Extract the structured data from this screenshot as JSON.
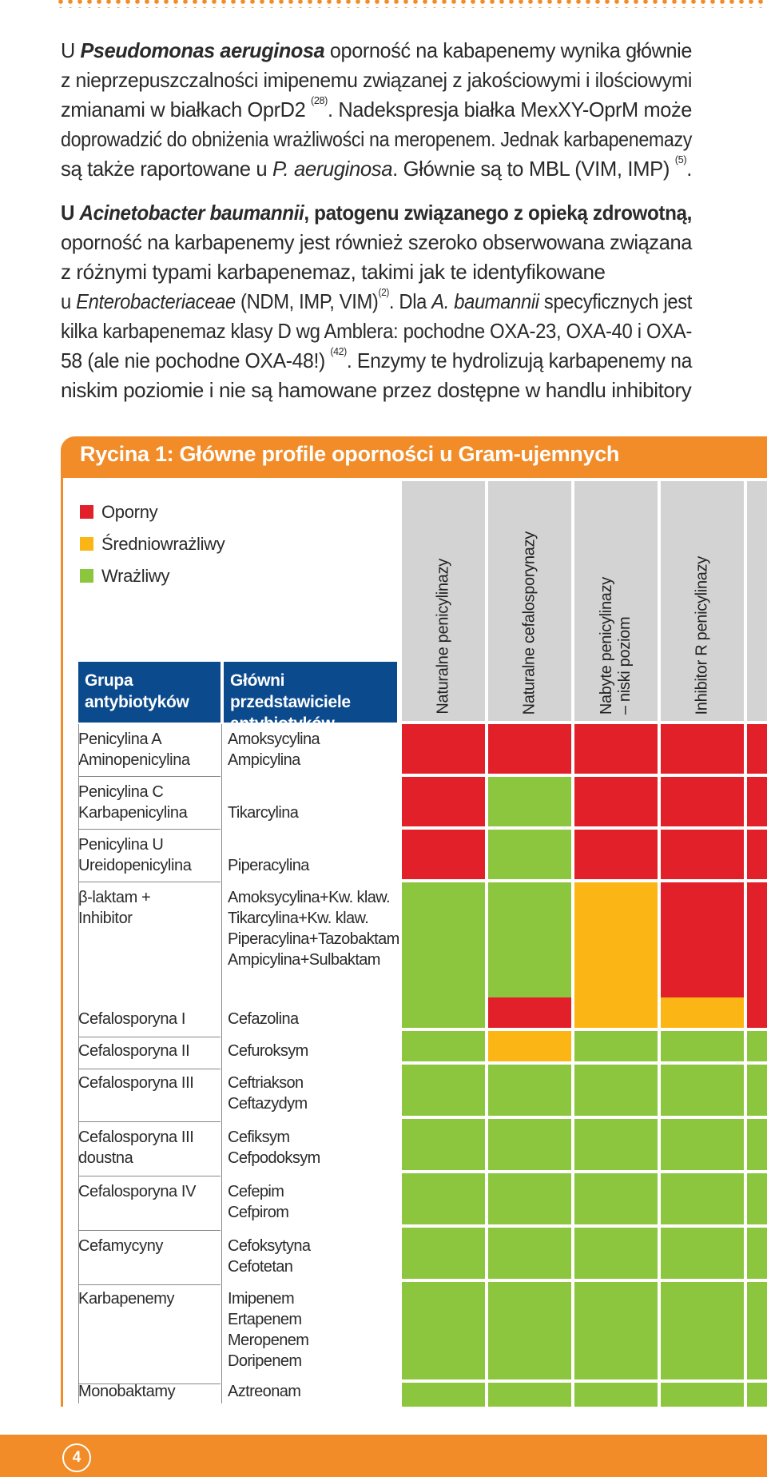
{
  "paragraph1": {
    "lines": [
      [
        "U ",
        "Pseudomonas aeruginosa",
        " oporność na kabapenemy wynika głównie"
      ],
      [
        "z nieprzepuszczalności imipenemu związanej z jakościowymi i ilościowymi"
      ],
      [
        "zmianami w białkach OprD2 ",
        "(28)",
        ". Nadekspresja białka MexXY-OprM może"
      ],
      [
        "doprowadzić do obniżenia wrażliwości na meropenem. Jednak karbapenemazy"
      ],
      [
        "są także raportowane u ",
        "P. aeruginosa",
        ". Głównie są to MBL (VIM, IMP) ",
        "(5)",
        "."
      ]
    ]
  },
  "paragraph2": {
    "lines": [
      [
        "U ",
        "Acinetobacter baumannii",
        ", patogenu związanego z opieką zdrowotną,"
      ],
      [
        "oporność na karbapenemy jest również szeroko obserwowana związana"
      ],
      [
        "z różnymi typami karbapenemaz, takimi jak te identyfikowane"
      ],
      [
        "u ",
        "Enterobacteriaceae",
        " (NDM, IMP, VIM)",
        "(2)",
        ". Dla ",
        "A. baumannii",
        " specyficznych jest"
      ],
      [
        "kilka karbapenemaz klasy D wg Amblera: pochodne OXA-23, OXA-40 i OXA-"
      ],
      [
        "58 (ale nie pochodne OXA-48!) ",
        "(42)",
        ". Enzymy te hydrolizują karbapenemy na"
      ],
      [
        "niskim poziomie i nie są hamowane przez dostępne w handlu inhibitory"
      ]
    ]
  },
  "figure": {
    "title": "Rycina 1: Główne profile oporności u Gram-ujemnych",
    "legend": [
      {
        "label": "Oporny",
        "color": "#e2202a"
      },
      {
        "label": "Średniowrażliwy",
        "color": "#fbb615"
      },
      {
        "label": "Wrażliwy",
        "color": "#8cc63e"
      }
    ],
    "col_header_group": "Grupa antybiotyków",
    "col_header_reps": "Główni przedstawiciele antybiotyków",
    "mechanisms": [
      "Naturalne  penicylinazy",
      "Naturalne cefalosporynazy",
      "Nabyte penicylinazy\n– niski poziom",
      "Inhibitor R penicylinazy",
      ""
    ],
    "rows": [
      {
        "group": "Penicylina A\nAminopenicylina",
        "reps": "Amoksycylina\nAmpicylina",
        "cells": [
          "R",
          "R",
          "R",
          "R",
          "R"
        ]
      },
      {
        "group": "Penicylina C\nKarbapenicylina",
        "reps": "Tikarcylina",
        "cells": [
          "R",
          "S",
          "R",
          "R",
          "R"
        ]
      },
      {
        "group": "Penicylina U\nUreidopenicylina",
        "reps": "Piperacylina",
        "cells": [
          "R",
          "S",
          "R",
          "R",
          "R"
        ]
      },
      {
        "group": "β-laktam +\nInhibitor",
        "reps": "Amoksycylina+Kw. klaw.\nTikarcylina+Kw. klaw.\nPiperacylina+Tazobaktam\nAmpicylina+Sulbaktam",
        "cells": [
          "S",
          "S",
          "I",
          "R",
          "R"
        ]
      },
      {
        "group": "Cefalosporyna I",
        "reps": "Cefazolina",
        "cells": [
          "S",
          "R",
          "I",
          "I",
          "R"
        ]
      },
      {
        "group": "Cefalosporyna II",
        "reps": "Cefuroksym",
        "cells": [
          "S",
          "I",
          "S",
          "S",
          "S"
        ]
      },
      {
        "group": "Cefalosporyna III",
        "reps": "Ceftriakson\nCeftazydym",
        "cells": [
          "S",
          "S",
          "S",
          "S",
          "S"
        ]
      },
      {
        "group": "Cefalosporyna III\ndoustna",
        "reps": "Cefiksym\nCefpodoksym",
        "cells": [
          "S",
          "S",
          "S",
          "S",
          "S"
        ]
      },
      {
        "group": "Cefalosporyna IV",
        "reps": "Cefepim\nCefpirom",
        "cells": [
          "S",
          "S",
          "S",
          "S",
          "S"
        ]
      },
      {
        "group": "Cefamycyny",
        "reps": "Cefoksytyna\nCefotetan",
        "cells": [
          "S",
          "S",
          "S",
          "S",
          "S"
        ]
      },
      {
        "group": "Karbapenemy",
        "reps": "Imipenem\nErtapenem\nMeropenem\nDoripenem",
        "cells": [
          "S",
          "S",
          "S",
          "S",
          "S"
        ]
      },
      {
        "group": "Monobaktamy",
        "reps": "Aztreonam",
        "cells": [
          "S",
          "S",
          "S",
          "S",
          "S"
        ]
      }
    ]
  },
  "colors": {
    "R": "#e2202a",
    "I": "#fbb615",
    "S": "#8cc63e",
    "accent": "#f28c28",
    "header": "#0b4a8c"
  },
  "page_number": "4"
}
